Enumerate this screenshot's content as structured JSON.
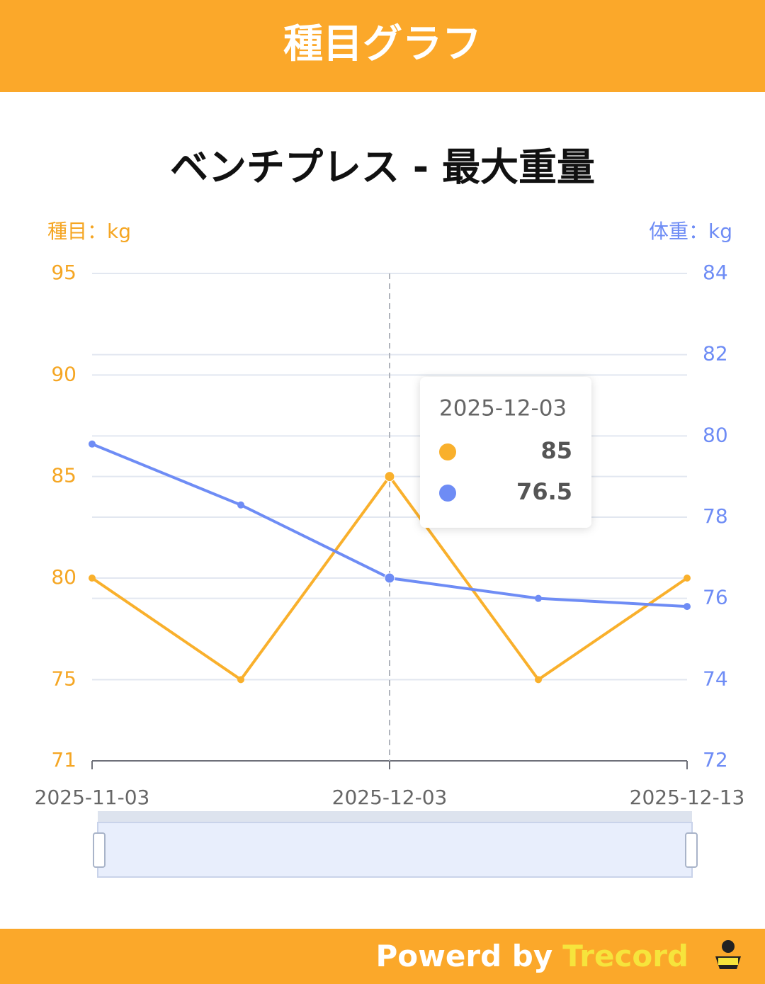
{
  "header": {
    "title": "種目グラフ"
  },
  "chart_data": {
    "type": "line",
    "title": "ベンチプレス - 最大重量",
    "y_label": "種目：kg",
    "y2_label": "体重：kg",
    "categories": [
      "2025-11-03",
      null,
      "2025-12-03",
      null,
      "2025-12-13"
    ],
    "series": [
      {
        "color": "#f9b02c",
        "values": [
          80,
          75,
          85,
          75,
          80
        ]
      },
      {
        "color": "#6e8cf5",
        "axis": "y2",
        "values": [
          79.8,
          78.3,
          76.5,
          76.0,
          75.8
        ]
      }
    ],
    "ylim": [
      71,
      95
    ],
    "yticks": [
      71,
      75,
      80,
      85,
      90,
      95
    ],
    "y2lim": [
      72,
      84
    ],
    "y2ticks": [
      72,
      74,
      76,
      78,
      80,
      82,
      84
    ],
    "grid": true
  },
  "footer": {
    "prefix": "Powerd by",
    "brand": "Trecord"
  }
}
